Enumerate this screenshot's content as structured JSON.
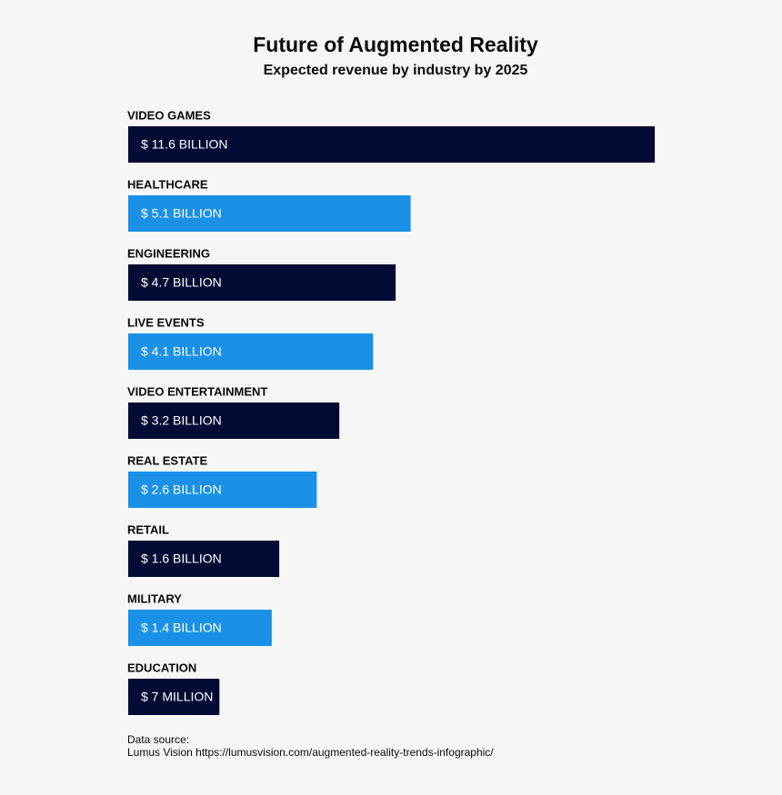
{
  "chart_data": {
    "type": "bar",
    "orientation": "horizontal",
    "title": "Future of Augmented Reality",
    "subtitle": "Expected revenue by industry by 2025",
    "categories": [
      "VIDEO GAMES",
      "HEALTHCARE",
      "ENGINEERING",
      "LIVE EVENTS",
      "VIDEO ENTERTAINMENT",
      "REAL ESTATE",
      "RETAIL",
      "MILITARY",
      "EDUCATION"
    ],
    "values": [
      11.6,
      5.1,
      4.7,
      4.1,
      3.2,
      2.6,
      1.6,
      1.4,
      0.007
    ],
    "value_labels": [
      "$ 11.6 BILLION",
      "$ 5.1 BILLION",
      "$ 4.7 BILLION",
      "$ 4.1 BILLION",
      "$ 3.2 BILLION",
      "$ 2.6 BILLION",
      "$ 1.6 BILLION",
      "$ 1.4 BILLION",
      "$ 7 MILLION"
    ],
    "colors": [
      "#020b33",
      "#1a91e6",
      "#020b33",
      "#1a91e6",
      "#020b33",
      "#1a91e6",
      "#020b33",
      "#1a91e6",
      "#020b33"
    ],
    "source_label": "Data source:",
    "source": "Lumus Vision https://lumusvision.com/augmented-reality-trends-infographic/"
  }
}
